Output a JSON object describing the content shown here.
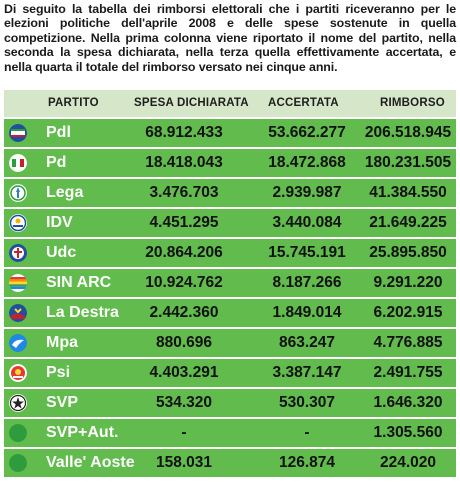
{
  "intro_text": "Di seguito la tabella dei rimborsi elettorali che i partiti riceveranno per le elezioni politiche dell'aprile 2008 e delle spese sostenute in quella competizione. Nella prima colonna viene riportato il nome del partito, nella seconda la spesa dichiarata, nella terza quella effettivamente accertata, e nella quarta il totale del rimborso versato nei cinque anni.",
  "headers": {
    "partito": "PARTITO",
    "spesa": "SPESA DICHIARATA",
    "accertata": "ACCERTATA",
    "rimborso": "RIMBORSO"
  },
  "colors": {
    "header_bg": "#d6e7c9",
    "row_bg": "#61bc4d",
    "party_text": "#ffffff",
    "value_text": "#111111"
  },
  "rows": [
    {
      "partito": "Pdl",
      "spesa": "68.912.433",
      "accertata": "53.662.277",
      "rimborso": "206.518.945",
      "logo": "pdl-logo-icon"
    },
    {
      "partito": "Pd",
      "spesa": "18.418.043",
      "accertata": "18.472.868",
      "rimborso": "180.231.505",
      "logo": "pd-logo-icon"
    },
    {
      "partito": "Lega",
      "spesa": "3.476.703",
      "accertata": "2.939.987",
      "rimborso": "41.384.550",
      "logo": "lega-logo-icon"
    },
    {
      "partito": "IDV",
      "spesa": "4.451.295",
      "accertata": "3.440.084",
      "rimborso": "21.649.225",
      "logo": "idv-logo-icon"
    },
    {
      "partito": "Udc",
      "spesa": "20.864.206",
      "accertata": "15.745.191",
      "rimborso": "25.895.850",
      "logo": "udc-logo-icon"
    },
    {
      "partito": "SIN ARC",
      "spesa": "10.924.762",
      "accertata": "8.187.266",
      "rimborso": "9.291.220",
      "logo": "sinistra-arcobaleno-logo-icon"
    },
    {
      "partito": "La Destra",
      "spesa": "2.442.360",
      "accertata": "1.849.014",
      "rimborso": "6.202.915",
      "logo": "la-destra-logo-icon"
    },
    {
      "partito": "Mpa",
      "spesa": "880.696",
      "accertata": "863.247",
      "rimborso": "4.776.885",
      "logo": "mpa-logo-icon"
    },
    {
      "partito": "Psi",
      "spesa": "4.403.291",
      "accertata": "3.387.147",
      "rimborso": "2.491.755",
      "logo": "psi-logo-icon"
    },
    {
      "partito": "SVP",
      "spesa": "534.320",
      "accertata": "530.307",
      "rimborso": "1.646.320",
      "logo": "svp-logo-icon"
    },
    {
      "partito": "SVP+Aut.",
      "spesa": "-",
      "accertata": "-",
      "rimborso": "1.305.560",
      "logo": "green-dot-icon"
    },
    {
      "partito": "Valle' Aoste",
      "spesa": "158.031",
      "accertata": "126.874",
      "rimborso": "224.020",
      "logo": "green-dot-icon"
    }
  ]
}
